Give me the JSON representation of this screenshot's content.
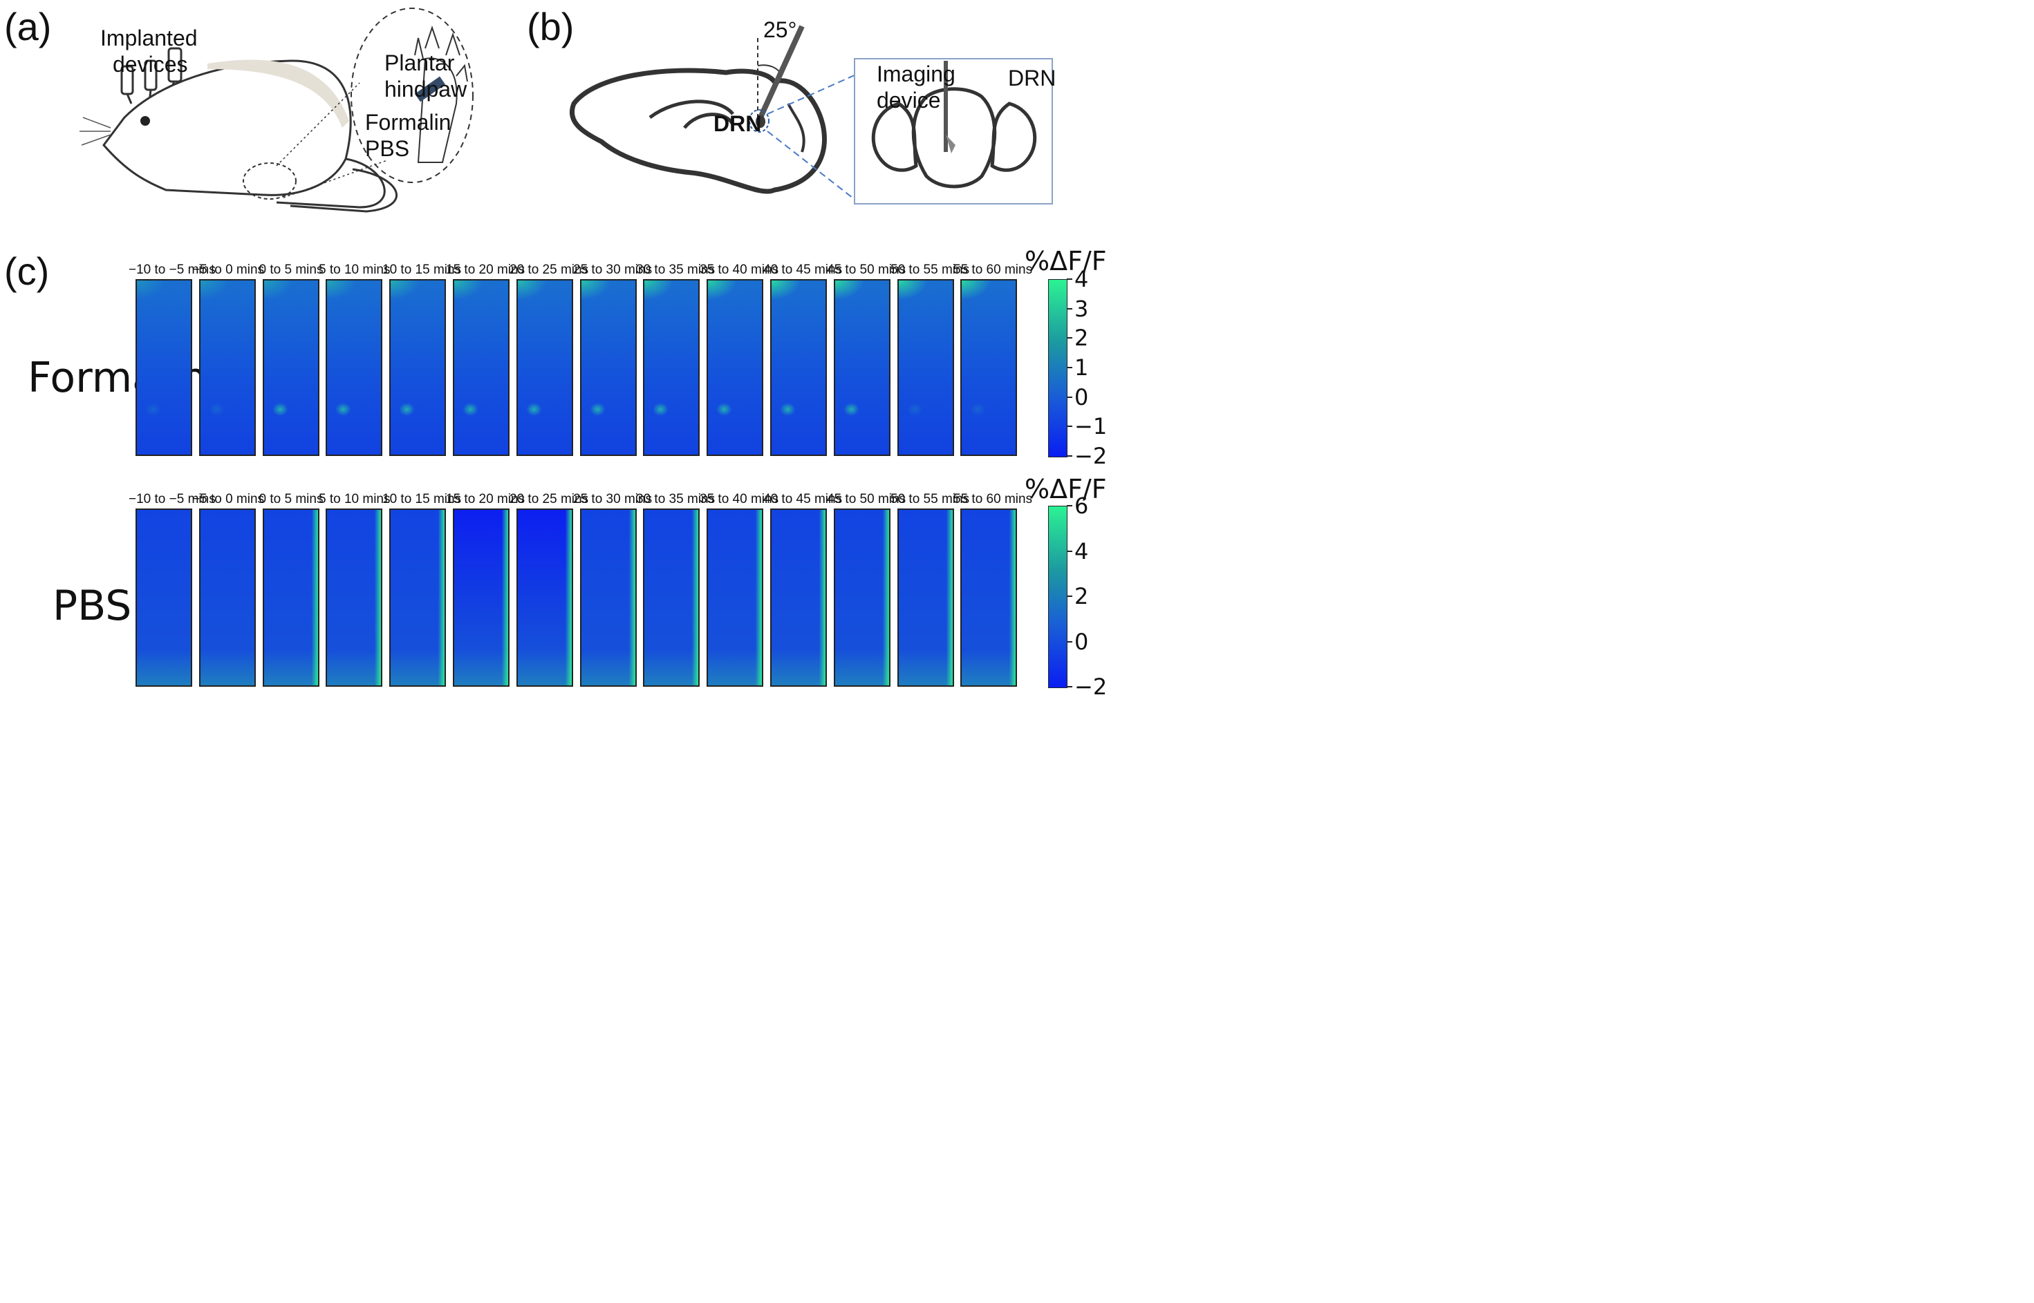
{
  "panel_a": {
    "letter": "(a)",
    "implanted_label_line1": "Implanted",
    "implanted_label_line2": "devices",
    "plantar_line1": "Plantar",
    "plantar_line2": "hindpaw",
    "formalin_label": "Formalin",
    "pbs_label": "PBS"
  },
  "panel_b": {
    "letter": "(b)",
    "angle_label": "25°",
    "drn_label": "DRN",
    "imaging_line1": "Imaging",
    "imaging_line2": "device",
    "drn_inset_label": "DRN"
  },
  "panel_c": {
    "letter": "(c)",
    "time_windows": [
      "−10 to −5 mins",
      "−5 to 0 mins",
      "0 to 5 mins",
      "5 to 10 mins",
      "10 to 15 mins",
      "15 to 20 mins",
      "20 to 25 mins",
      "25 to 30 mins",
      "30 to 35 mins",
      "35 to 40 mins",
      "40 to 45 mins",
      "45 to 50 mins",
      "50 to 55 mins",
      "55 to 60 mins"
    ],
    "formalin": {
      "row_label": "Formalin",
      "colorbar_title": "%ΔF/F",
      "colorbar_ticks": [
        "4",
        "3",
        "2",
        "1",
        "0",
        "−1",
        "−2"
      ],
      "colorbar_range": [
        -2,
        4
      ]
    },
    "pbs": {
      "row_label": "PBS",
      "colorbar_title": "%ΔF/F",
      "colorbar_ticks": [
        "6",
        "4",
        "2",
        "0",
        "−2"
      ],
      "colorbar_range": [
        -2,
        6
      ]
    },
    "colors": {
      "low": "#0a1ef2",
      "mid": "#1a6fd0",
      "high": "#2cf294"
    }
  }
}
